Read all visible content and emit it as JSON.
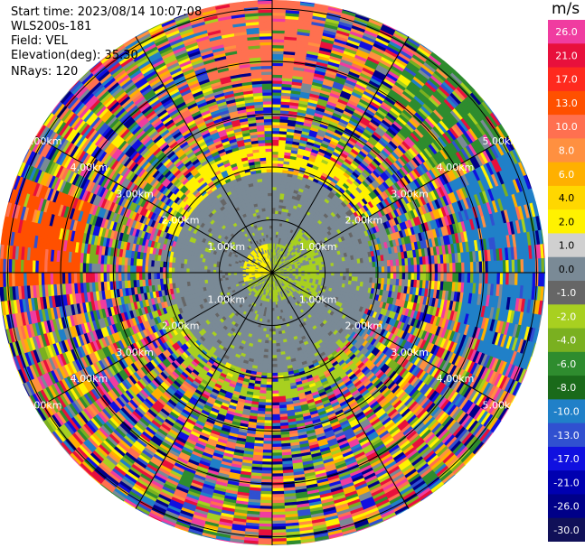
{
  "header": {
    "start_time": "Start time: 2023/08/14 10:07:08",
    "instrument": "WLS200s-181",
    "field": "Field: VEL",
    "elevation": "Elevation(deg): 35.30",
    "nrays": "NRays: 120"
  },
  "range_rings": [
    "1.00km",
    "2.00km",
    "3.00km",
    "4.00km",
    "5.00km"
  ],
  "colorbar": {
    "unit": "m/s",
    "ticks": [
      "26.0",
      "21.0",
      "17.0",
      "13.0",
      "10.0",
      "8.0",
      "6.0",
      "4.0",
      "2.0",
      "1.0",
      "0.0",
      "-1.0",
      "-2.0",
      "-4.0",
      "-6.0",
      "-8.0",
      "-10.0",
      "-13.0",
      "-17.0",
      "-21.0",
      "-26.0",
      "-30.0"
    ],
    "colors": [
      "#f03ca0",
      "#e8103c",
      "#ff2a1e",
      "#ff5000",
      "#ff7050",
      "#ff9040",
      "#ffb000",
      "#ffd700",
      "#fff200",
      "#d0d0d0",
      "#7a8a96",
      "#666666",
      "#a8d020",
      "#7ab020",
      "#2e8c2e",
      "#1a6a1a",
      "#2080c8",
      "#3050d0",
      "#1010e0",
      "#0000b0",
      "#000088",
      "#101058"
    ]
  }
}
